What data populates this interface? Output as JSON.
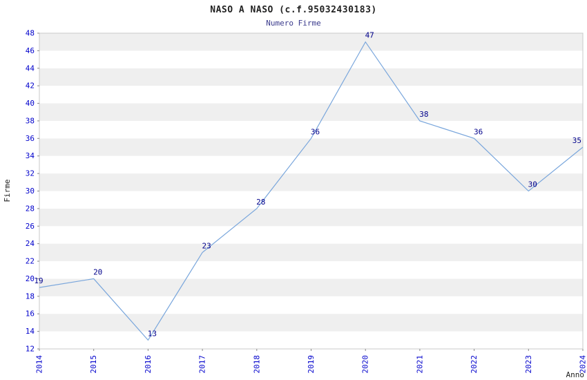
{
  "page": {
    "title": "NASO A NASO (c.f.95032430183)",
    "subtitle": "Numero Firme"
  },
  "chart_data": {
    "type": "line",
    "title": "NASO A NASO (c.f.95032430183)",
    "subtitle": "Numero Firme",
    "xlabel": "Anno",
    "ylabel": "Firme",
    "x": [
      "2014",
      "2015",
      "2016",
      "2017",
      "2018",
      "2019",
      "2020",
      "2021",
      "2022",
      "2023",
      "2024"
    ],
    "values": [
      19,
      20,
      13,
      23,
      28,
      36,
      47,
      38,
      36,
      30,
      35
    ],
    "ylim": [
      12,
      48
    ],
    "ytick_step": 2,
    "grid": "horizontal-bands",
    "legend": "none",
    "colors": {
      "line": "#79a6dc",
      "tick_labels": "#0000cc",
      "value_labels": "#00008b",
      "band": "#efefef",
      "band_alt": "#ffffff",
      "border": "#c9c9c9",
      "tick_mark": "#888888",
      "title": "#222222",
      "subtitle": "#3a3a8c",
      "axis_label": "#222222"
    }
  }
}
